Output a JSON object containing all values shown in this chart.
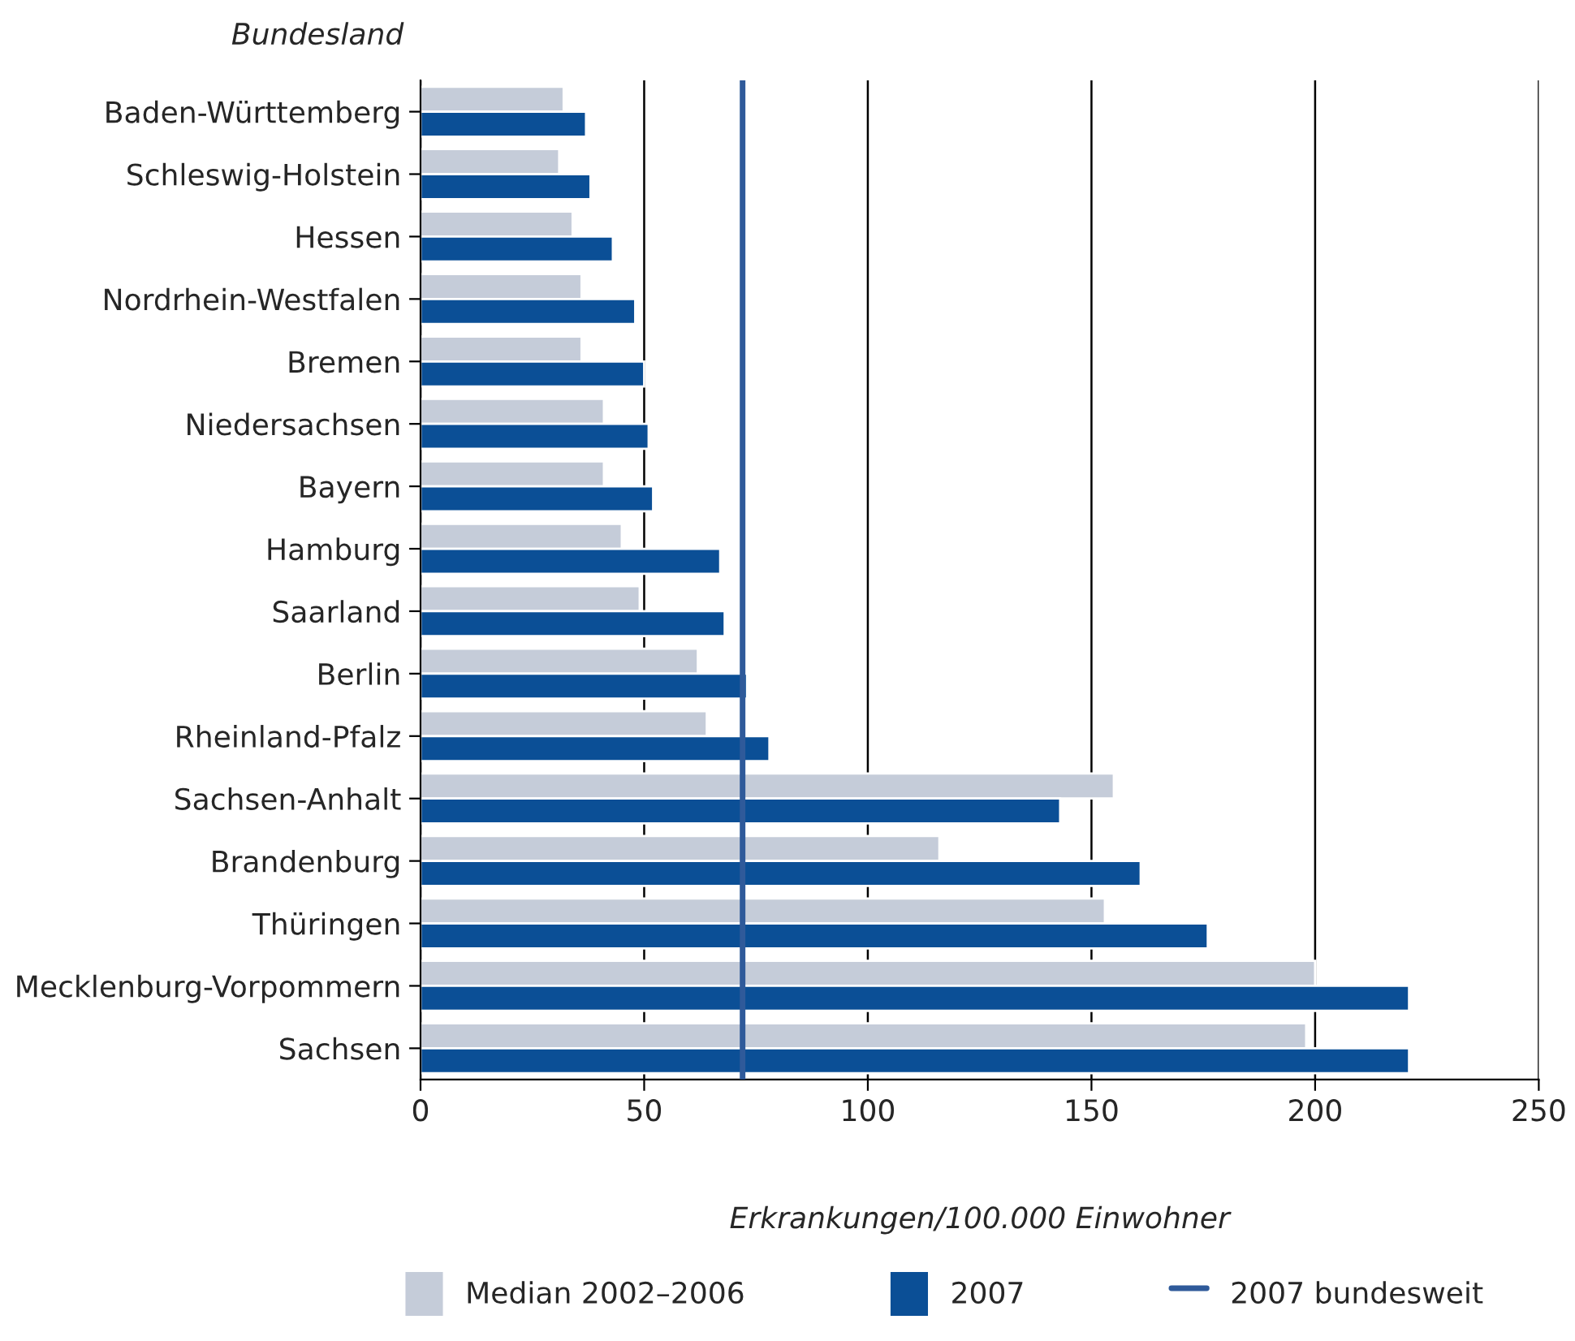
{
  "chart_data": {
    "type": "bar",
    "orientation": "horizontal",
    "ylabel": "Bundesland",
    "xlabel": "Erkrankungen/100.000 Einwohner",
    "categories": [
      "Baden-Württemberg",
      "Schleswig-Holstein",
      "Hessen",
      "Nordrhein-Westfalen",
      "Bremen",
      "Niedersachsen",
      "Bayern",
      "Hamburg",
      "Saarland",
      "Berlin",
      "Rheinland-Pfalz",
      "Sachsen-Anhalt",
      "Brandenburg",
      "Thüringen",
      "Mecklenburg-Vorpommern",
      "Sachsen"
    ],
    "series": [
      {
        "name": "Median 2002–2006",
        "color": "#c5ccd9",
        "values": [
          32,
          31,
          34,
          36,
          36,
          41,
          41,
          45,
          49,
          62,
          64,
          155,
          116,
          153,
          200,
          198
        ]
      },
      {
        "name": "2007",
        "color": "#0b4f96",
        "values": [
          37,
          38,
          43,
          48,
          50,
          51,
          52,
          67,
          68,
          73,
          78,
          143,
          161,
          176,
          221,
          221
        ]
      }
    ],
    "ref_lines": [
      {
        "axis": "x",
        "value": 72,
        "label": "2007 bundesweit",
        "color": "#2f5a9a",
        "line_style": "solid"
      }
    ],
    "xlim": [
      0,
      250
    ],
    "xticks": [
      0,
      50,
      100,
      150,
      200,
      250
    ],
    "grid": "x",
    "legend": "bottom"
  }
}
